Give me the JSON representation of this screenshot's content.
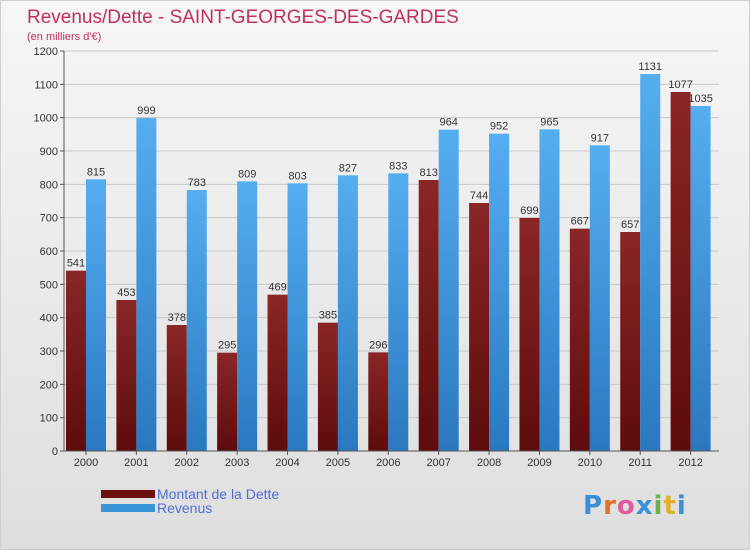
{
  "title": "Revenus/Dette - SAINT-GEORGES-DES-GARDES",
  "subtitle": "(en milliers d'€)",
  "colors": {
    "dette": "#7a1414",
    "revenus": "#3a95d8",
    "title": "#c0305c",
    "legend_text": "#4f6fd8"
  },
  "chart_data": {
    "type": "bar",
    "title": "Revenus/Dette - SAINT-GEORGES-DES-GARDES",
    "subtitle": "(en milliers d'€)",
    "categories": [
      "2000",
      "2001",
      "2002",
      "2003",
      "2004",
      "2005",
      "2006",
      "2007",
      "2008",
      "2009",
      "2010",
      "2011",
      "2012"
    ],
    "series": [
      {
        "name": "Montant de la Dette",
        "values": [
          541,
          453,
          378,
          295,
          469,
          385,
          296,
          813,
          744,
          699,
          667,
          657,
          1077
        ]
      },
      {
        "name": "Revenus",
        "values": [
          815,
          999,
          783,
          809,
          803,
          827,
          833,
          964,
          952,
          965,
          917,
          1131,
          1035
        ]
      }
    ],
    "ylim": [
      0,
      1200
    ],
    "yticks": [
      0,
      100,
      200,
      300,
      400,
      500,
      600,
      700,
      800,
      900,
      1000,
      1100,
      1200
    ],
    "grid": true,
    "legend": "bottom-left"
  },
  "legend": {
    "items": [
      {
        "label": "Montant de la Dette"
      },
      {
        "label": "Revenus"
      }
    ]
  },
  "logo": {
    "letters": [
      "P",
      "r",
      "o",
      "x",
      "i",
      "t",
      "i"
    ]
  }
}
